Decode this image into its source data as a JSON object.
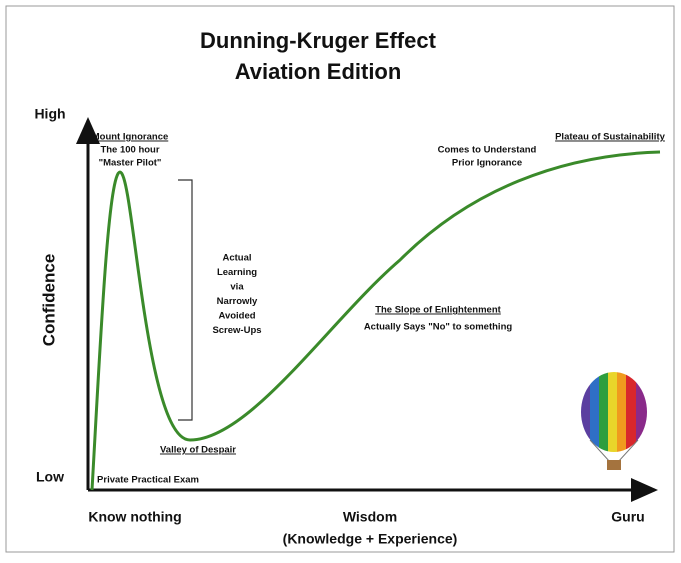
{
  "title": {
    "line1": "Dunning-Kruger Effect",
    "line2": "Aviation Edition"
  },
  "y_axis": {
    "label": "Confidence",
    "high": "High",
    "low": "Low"
  },
  "x_axis": {
    "start": "Know nothing",
    "label": "Wisdom",
    "sublabel": "(Knowledge + Experience)",
    "end": "Guru"
  },
  "annotations": {
    "mount_ignorance": {
      "heading": "Mount Ignorance",
      "lines": [
        "The 100 hour",
        "\"Master Pilot\""
      ]
    },
    "actual_learning": {
      "lines": [
        "Actual",
        "Learning",
        "via",
        "Narrowly",
        "Avoided",
        "Screw-Ups"
      ]
    },
    "valley": {
      "heading": "Valley of Despair"
    },
    "exam": {
      "text": "Private Practical Exam"
    },
    "slope": {
      "heading": "The Slope of Enlightenment",
      "text": "Actually Says \"No\" to something"
    },
    "understand": {
      "lines": [
        "Comes to Understand",
        "Prior Ignorance"
      ]
    },
    "plateau": {
      "heading": "Plateau of Sustainability"
    }
  }
}
